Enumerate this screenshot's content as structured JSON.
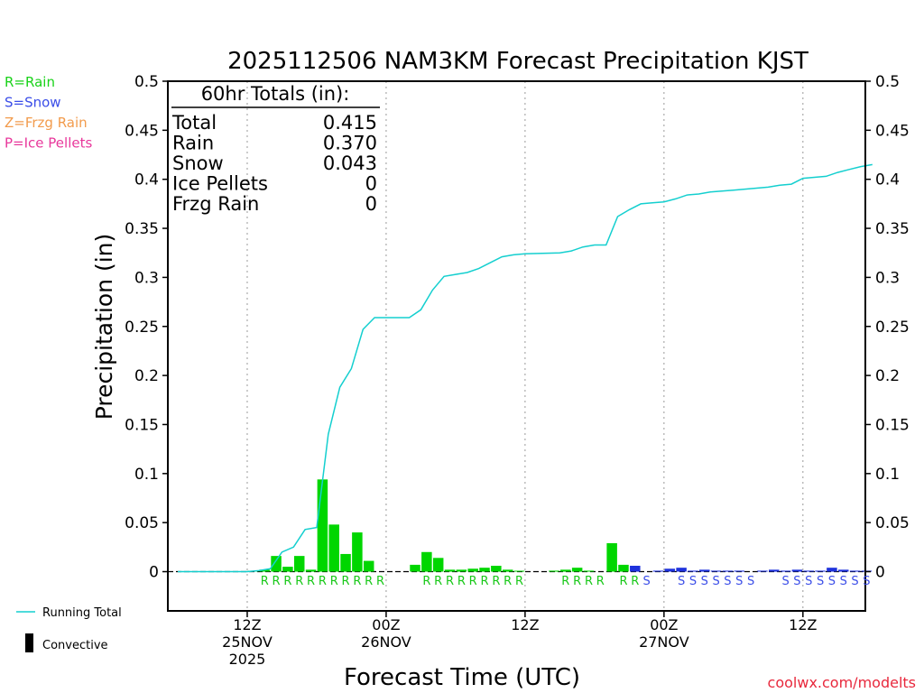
{
  "chart_data": {
    "type": "bar",
    "title": "2025112506 NAM3KM Forecast Precipitation KJST",
    "xlabel": "Forecast Time (UTC)",
    "ylabel": "Precipitation (in)",
    "ylim": [
      -0.04,
      0.5
    ],
    "y_ticks": [
      0,
      0.05,
      0.1,
      0.15,
      0.2,
      0.25,
      0.3,
      0.35,
      0.4,
      0.45,
      0.5
    ],
    "y_tick_labels": [
      "0",
      "0.05",
      "0.1",
      "0.15",
      "0.2",
      "0.25",
      "0.3",
      "0.35",
      "0.4",
      "0.45",
      "0.5"
    ],
    "x_range_hours": [
      0,
      60
    ],
    "grid": "vertical dotted at 12-hour marks",
    "x_ticks": [
      {
        "hour": 6,
        "lines": [
          "12Z",
          "25NOV",
          "2025"
        ]
      },
      {
        "hour": 18,
        "lines": [
          "00Z",
          "26NOV"
        ]
      },
      {
        "hour": 30,
        "lines": [
          "12Z"
        ]
      },
      {
        "hour": 42,
        "lines": [
          "00Z",
          "27NOV"
        ]
      },
      {
        "hour": 54,
        "lines": [
          "12Z"
        ]
      }
    ],
    "bars": [
      {
        "hour": 7,
        "value": 0.0005,
        "type": "R"
      },
      {
        "hour": 8,
        "value": 0.002,
        "type": "R"
      },
      {
        "hour": 9,
        "value": 0.016,
        "type": "R"
      },
      {
        "hour": 10,
        "value": 0.005,
        "type": "R"
      },
      {
        "hour": 11,
        "value": 0.016,
        "type": "R"
      },
      {
        "hour": 12,
        "value": 0.002,
        "type": "R"
      },
      {
        "hour": 13,
        "value": 0.094,
        "type": "R"
      },
      {
        "hour": 14,
        "value": 0.048,
        "type": "R"
      },
      {
        "hour": 15,
        "value": 0.018,
        "type": "R"
      },
      {
        "hour": 16,
        "value": 0.04,
        "type": "R"
      },
      {
        "hour": 17,
        "value": 0.011,
        "type": "R"
      },
      {
        "hour": 18,
        "value": 0.0,
        "type": "R"
      },
      {
        "hour": 21,
        "value": 0.007,
        "type": "R"
      },
      {
        "hour": 22,
        "value": 0.02,
        "type": "R"
      },
      {
        "hour": 23,
        "value": 0.014,
        "type": "R"
      },
      {
        "hour": 24,
        "value": 0.002,
        "type": "R"
      },
      {
        "hour": 25,
        "value": 0.002,
        "type": "R"
      },
      {
        "hour": 26,
        "value": 0.003,
        "type": "R"
      },
      {
        "hour": 27,
        "value": 0.004,
        "type": "R"
      },
      {
        "hour": 28,
        "value": 0.006,
        "type": "R"
      },
      {
        "hour": 29,
        "value": 0.002,
        "type": "R"
      },
      {
        "hour": 30,
        "value": 0.0005,
        "type": "R"
      },
      {
        "hour": 33,
        "value": 0.001,
        "type": "R"
      },
      {
        "hour": 34,
        "value": 0.002,
        "type": "R"
      },
      {
        "hour": 35,
        "value": 0.004,
        "type": "R"
      },
      {
        "hour": 36,
        "value": 0.001,
        "type": "R"
      },
      {
        "hour": 38,
        "value": 0.029,
        "type": "R"
      },
      {
        "hour": 39,
        "value": 0.007,
        "type": "R"
      },
      {
        "hour": 40,
        "value": 0.006,
        "type": "S"
      },
      {
        "hour": 42,
        "value": 0.001,
        "type": "S"
      },
      {
        "hour": 43,
        "value": 0.003,
        "type": "S"
      },
      {
        "hour": 44,
        "value": 0.004,
        "type": "S"
      },
      {
        "hour": 45,
        "value": 0.001,
        "type": "S"
      },
      {
        "hour": 46,
        "value": 0.002,
        "type": "S"
      },
      {
        "hour": 47,
        "value": 0.001,
        "type": "S"
      },
      {
        "hour": 48,
        "value": 0.001,
        "type": "S"
      },
      {
        "hour": 49,
        "value": 0.001,
        "type": "S"
      },
      {
        "hour": 51,
        "value": 0.001,
        "type": "S"
      },
      {
        "hour": 52,
        "value": 0.002,
        "type": "S"
      },
      {
        "hour": 53,
        "value": 0.001,
        "type": "S"
      },
      {
        "hour": 54,
        "value": 0.002,
        "type": "S"
      },
      {
        "hour": 55,
        "value": 0.001,
        "type": "S"
      },
      {
        "hour": 56,
        "value": 0.001,
        "type": "S"
      },
      {
        "hour": 57,
        "value": 0.004,
        "type": "S"
      },
      {
        "hour": 58,
        "value": 0.002,
        "type": "S"
      },
      {
        "hour": 59,
        "value": 0.001,
        "type": "S"
      },
      {
        "hour": 60,
        "value": 0.001,
        "type": "S"
      }
    ],
    "type_letters": [
      {
        "hour": 8,
        "type": "R"
      },
      {
        "hour": 9,
        "type": "R"
      },
      {
        "hour": 10,
        "type": "R"
      },
      {
        "hour": 11,
        "type": "R"
      },
      {
        "hour": 12,
        "type": "R"
      },
      {
        "hour": 13,
        "type": "R"
      },
      {
        "hour": 14,
        "type": "R"
      },
      {
        "hour": 15,
        "type": "R"
      },
      {
        "hour": 16,
        "type": "R"
      },
      {
        "hour": 17,
        "type": "R"
      },
      {
        "hour": 18,
        "type": "R"
      },
      {
        "hour": 22,
        "type": "R"
      },
      {
        "hour": 23,
        "type": "R"
      },
      {
        "hour": 24,
        "type": "R"
      },
      {
        "hour": 25,
        "type": "R"
      },
      {
        "hour": 26,
        "type": "R"
      },
      {
        "hour": 27,
        "type": "R"
      },
      {
        "hour": 28,
        "type": "R"
      },
      {
        "hour": 29,
        "type": "R"
      },
      {
        "hour": 30,
        "type": "R"
      },
      {
        "hour": 34,
        "type": "R"
      },
      {
        "hour": 35,
        "type": "R"
      },
      {
        "hour": 36,
        "type": "R"
      },
      {
        "hour": 37,
        "type": "R"
      },
      {
        "hour": 39,
        "type": "R"
      },
      {
        "hour": 40,
        "type": "R"
      },
      {
        "hour": 41,
        "type": "S"
      },
      {
        "hour": 44,
        "type": "S"
      },
      {
        "hour": 45,
        "type": "S"
      },
      {
        "hour": 46,
        "type": "S"
      },
      {
        "hour": 47,
        "type": "S"
      },
      {
        "hour": 48,
        "type": "S"
      },
      {
        "hour": 49,
        "type": "S"
      },
      {
        "hour": 50,
        "type": "S"
      },
      {
        "hour": 53,
        "type": "S"
      },
      {
        "hour": 54,
        "type": "S"
      },
      {
        "hour": 55,
        "type": "S"
      },
      {
        "hour": 56,
        "type": "S"
      },
      {
        "hour": 57,
        "type": "S"
      },
      {
        "hour": 58,
        "type": "S"
      },
      {
        "hour": 59,
        "type": "S"
      },
      {
        "hour": 60,
        "type": "S"
      }
    ],
    "running_total": {
      "name": "Running Total",
      "points": [
        [
          0,
          0
        ],
        [
          6,
          0
        ],
        [
          7,
          0.001
        ],
        [
          8,
          0.003
        ],
        [
          9,
          0.02
        ],
        [
          10,
          0.025
        ],
        [
          11,
          0.043
        ],
        [
          12,
          0.045
        ],
        [
          13,
          0.14
        ],
        [
          14,
          0.188
        ],
        [
          15,
          0.207
        ],
        [
          16,
          0.247
        ],
        [
          17,
          0.259
        ],
        [
          18,
          0.259
        ],
        [
          20,
          0.259
        ],
        [
          21,
          0.267
        ],
        [
          22,
          0.287
        ],
        [
          23,
          0.301
        ],
        [
          24,
          0.303
        ],
        [
          25,
          0.305
        ],
        [
          26,
          0.309
        ],
        [
          27,
          0.315
        ],
        [
          28,
          0.321
        ],
        [
          29,
          0.323
        ],
        [
          30,
          0.324
        ],
        [
          33,
          0.325
        ],
        [
          34,
          0.327
        ],
        [
          35,
          0.331
        ],
        [
          36,
          0.333
        ],
        [
          37,
          0.333
        ],
        [
          38,
          0.362
        ],
        [
          39,
          0.369
        ],
        [
          40,
          0.375
        ],
        [
          41,
          0.376
        ],
        [
          42,
          0.377
        ],
        [
          43,
          0.38
        ],
        [
          44,
          0.384
        ],
        [
          45,
          0.385
        ],
        [
          46,
          0.387
        ],
        [
          47,
          0.388
        ],
        [
          48,
          0.389
        ],
        [
          49,
          0.39
        ],
        [
          50,
          0.391
        ],
        [
          51,
          0.392
        ],
        [
          52,
          0.394
        ],
        [
          53,
          0.395
        ],
        [
          54,
          0.401
        ],
        [
          55,
          0.402
        ],
        [
          56,
          0.403
        ],
        [
          57,
          0.407
        ],
        [
          58,
          0.41
        ],
        [
          59,
          0.413
        ],
        [
          60,
          0.415
        ]
      ]
    },
    "totals": {
      "heading": "60hr Totals (in):",
      "rows": [
        {
          "label": "Total",
          "value": "0.415"
        },
        {
          "label": "Rain",
          "value": "0.370"
        },
        {
          "label": "Snow",
          "value": "0.043"
        },
        {
          "label": "Ice Pellets",
          "value": "0"
        },
        {
          "label": "Frzg Rain",
          "value": "0"
        }
      ]
    },
    "type_legend": [
      {
        "text": "R=Rain",
        "color": "#19d219"
      },
      {
        "text": "S=Snow",
        "color": "#3a4de8"
      },
      {
        "text": "Z=Frzg Rain",
        "color": "#f29b4c"
      },
      {
        "text": "P=Ice Pellets",
        "color": "#e8379b"
      }
    ],
    "line_legend": [
      {
        "text": "Running Total",
        "kind": "line",
        "color": "#14cfcf"
      },
      {
        "text": "Convective",
        "kind": "block",
        "color": "#000000"
      }
    ],
    "colors": {
      "rain": "#00d600",
      "snow": "#1e32dc",
      "rain_letter": "#19c819",
      "snow_letter": "#3a4de8",
      "running_total": "#14cfcf"
    },
    "credit": "coolwx.com/modelts"
  }
}
